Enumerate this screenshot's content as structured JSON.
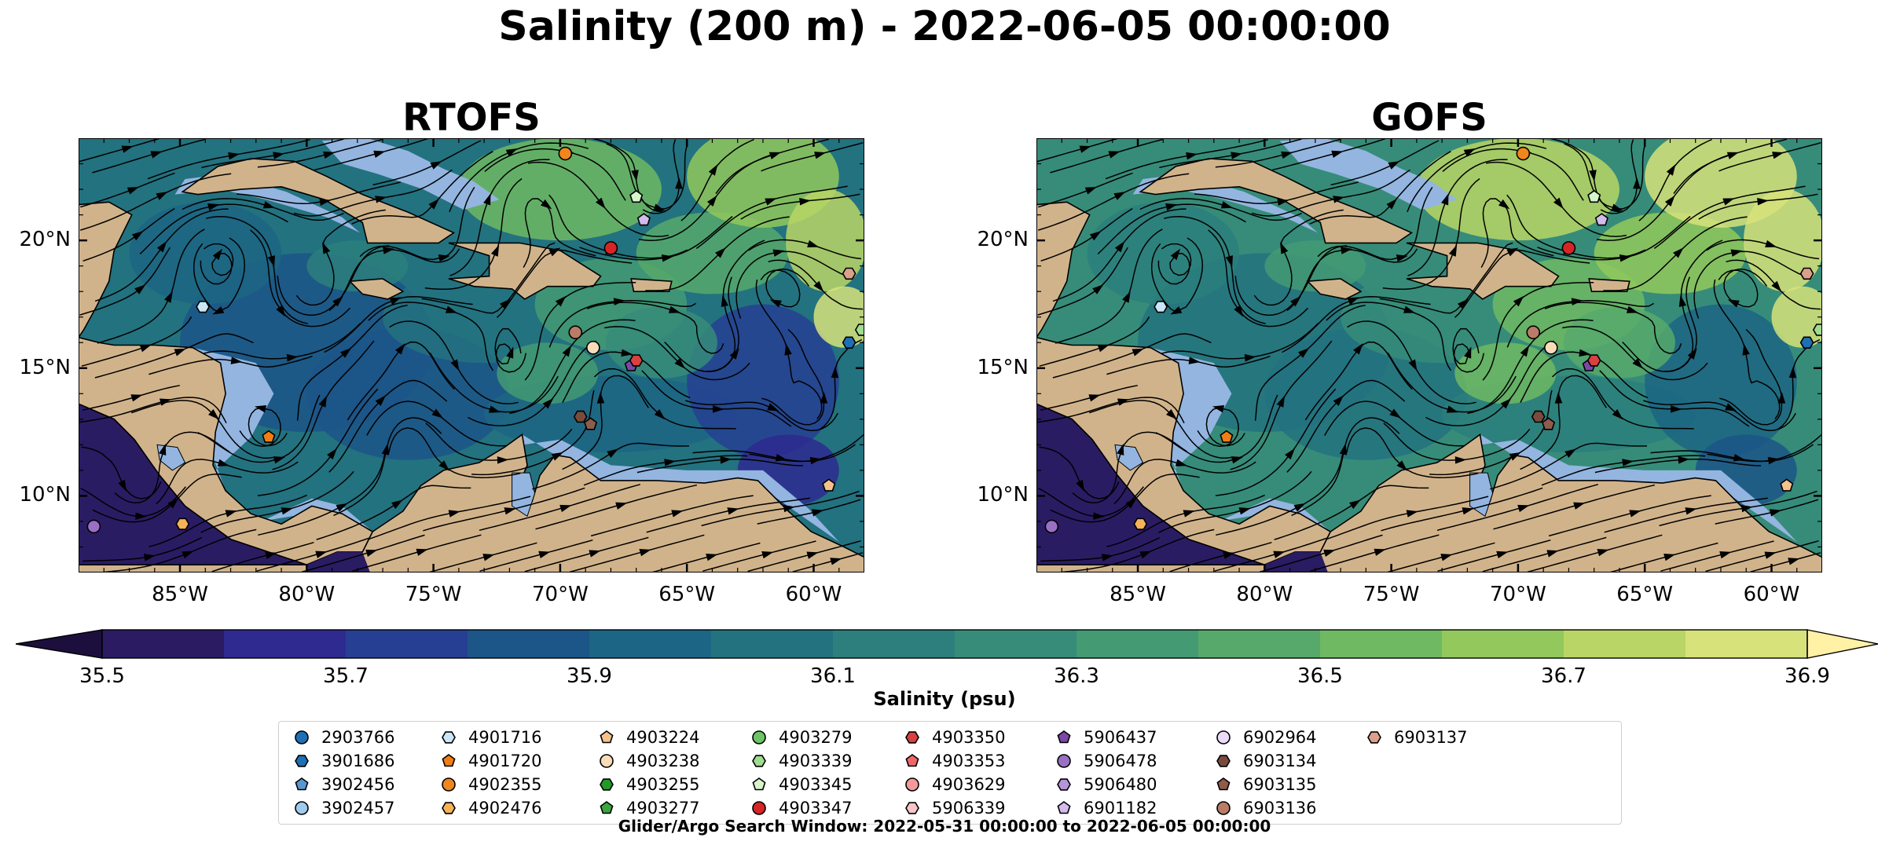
{
  "title": "Salinity (200 m) - 2022-06-05 00:00:00",
  "panels": [
    {
      "title": "RTOFS",
      "pal_offset": 0
    },
    {
      "title": "GOFS",
      "pal_offset": 2
    }
  ],
  "axes": {
    "lon_range": [
      -89,
      -58
    ],
    "lat_range": [
      7,
      24
    ],
    "x_ticks": [
      {
        "value": -85,
        "label": "85°W"
      },
      {
        "value": -80,
        "label": "80°W"
      },
      {
        "value": -75,
        "label": "75°W"
      },
      {
        "value": -70,
        "label": "70°W"
      },
      {
        "value": -65,
        "label": "65°W"
      },
      {
        "value": -60,
        "label": "60°W"
      }
    ],
    "y_ticks": [
      {
        "value": 20,
        "label": "20°N"
      },
      {
        "value": 15,
        "label": "15°N"
      },
      {
        "value": 10,
        "label": "10°N"
      }
    ]
  },
  "colorbar": {
    "label": "Salinity (psu)",
    "min": 35.5,
    "max": 36.9,
    "ticks": [
      "35.5",
      "35.7",
      "35.9",
      "36.1",
      "36.3",
      "36.5",
      "36.7",
      "36.9"
    ],
    "colors": [
      "#2a1b63",
      "#2e2a8f",
      "#263f93",
      "#1c5587",
      "#1c6584",
      "#23727f",
      "#2c7f7d",
      "#368c79",
      "#439a73",
      "#56a96b",
      "#6fb963",
      "#92c85c",
      "#b9d565",
      "#d7e27a"
    ],
    "under_color": "#1d0f3d",
    "over_color": "#fff1a6"
  },
  "colors": {
    "land": "#d1b38b",
    "shelf": "#93b5e0",
    "ocean_pacific": "#2a1c63",
    "streamline": "#000000"
  },
  "floats": [
    {
      "id": "2903766",
      "color": "#1f6fb4",
      "marker": "circle"
    },
    {
      "id": "3901686",
      "color": "#1f6fb4",
      "marker": "hexagon"
    },
    {
      "id": "3902456",
      "color": "#5a97cf",
      "marker": "pentagon"
    },
    {
      "id": "3902457",
      "color": "#9ecbee",
      "marker": "circle"
    },
    {
      "id": "4901716",
      "color": "#cbe6f7",
      "marker": "hexagon"
    },
    {
      "id": "4901720",
      "color": "#f07e14",
      "marker": "pentagon"
    },
    {
      "id": "4902355",
      "color": "#f0861c",
      "marker": "circle"
    },
    {
      "id": "4902476",
      "color": "#f5b257",
      "marker": "hexagon"
    },
    {
      "id": "4903224",
      "color": "#f6c28c",
      "marker": "pentagon"
    },
    {
      "id": "4903238",
      "color": "#fadcb9",
      "marker": "circle"
    },
    {
      "id": "4903255",
      "color": "#22992a",
      "marker": "hexagon"
    },
    {
      "id": "4903277",
      "color": "#3ba640",
      "marker": "pentagon"
    },
    {
      "id": "4903279",
      "color": "#6cc466",
      "marker": "circle"
    },
    {
      "id": "4903339",
      "color": "#9edc8e",
      "marker": "hexagon"
    },
    {
      "id": "4903345",
      "color": "#d6f5cb",
      "marker": "pentagon"
    },
    {
      "id": "4903347",
      "color": "#d72424",
      "marker": "circle"
    },
    {
      "id": "4903350",
      "color": "#d94040",
      "marker": "hexagon"
    },
    {
      "id": "4903353",
      "color": "#ef6767",
      "marker": "pentagon"
    },
    {
      "id": "4903629",
      "color": "#f59a9a",
      "marker": "circle"
    },
    {
      "id": "5906339",
      "color": "#f8c6c6",
      "marker": "hexagon"
    },
    {
      "id": "5906437",
      "color": "#7b47a8",
      "marker": "pentagon"
    },
    {
      "id": "5906478",
      "color": "#9a70c4",
      "marker": "circle"
    },
    {
      "id": "5906480",
      "color": "#b594d8",
      "marker": "hexagon"
    },
    {
      "id": "6901182",
      "color": "#d3bbec",
      "marker": "pentagon"
    },
    {
      "id": "6902964",
      "color": "#eadcf8",
      "marker": "circle"
    },
    {
      "id": "6903134",
      "color": "#7a4b3c",
      "marker": "hexagon"
    },
    {
      "id": "6903135",
      "color": "#8f5b4b",
      "marker": "pentagon"
    },
    {
      "id": "6903136",
      "color": "#b97c67",
      "marker": "circle"
    },
    {
      "id": "6903137",
      "color": "#dba08c",
      "marker": "hexagon"
    }
  ],
  "float_positions": [
    {
      "id": "4902355",
      "lon": -69.8,
      "lat": 23.4
    },
    {
      "id": "4903345",
      "lon": -67.0,
      "lat": 21.7
    },
    {
      "id": "6901182",
      "lon": -66.7,
      "lat": 20.8
    },
    {
      "id": "4903347",
      "lon": -68.0,
      "lat": 19.7
    },
    {
      "id": "6903137",
      "lon": -58.6,
      "lat": 18.7
    },
    {
      "id": "4901716",
      "lon": -84.1,
      "lat": 17.4
    },
    {
      "id": "6903136",
      "lon": -69.4,
      "lat": 16.4
    },
    {
      "id": "4903238",
      "lon": -68.7,
      "lat": 15.8
    },
    {
      "id": "5906437",
      "lon": -67.2,
      "lat": 15.1
    },
    {
      "id": "4903350",
      "lon": -67.0,
      "lat": 15.3
    },
    {
      "id": "3901686",
      "lon": -58.6,
      "lat": 16.0
    },
    {
      "id": "4903339",
      "lon": -58.1,
      "lat": 16.5
    },
    {
      "id": "4901720",
      "lon": -81.5,
      "lat": 12.3
    },
    {
      "id": "6903134",
      "lon": -69.2,
      "lat": 13.1
    },
    {
      "id": "6903135",
      "lon": -68.8,
      "lat": 12.8
    },
    {
      "id": "4903224",
      "lon": -59.4,
      "lat": 10.4
    },
    {
      "id": "5906478",
      "lon": -88.4,
      "lat": 8.8
    },
    {
      "id": "4902476",
      "lon": -84.9,
      "lat": 8.9
    }
  ],
  "search_window": "Glider/Argo Search Window: 2022-05-31 00:00:00 to 2022-06-05 00:00:00"
}
